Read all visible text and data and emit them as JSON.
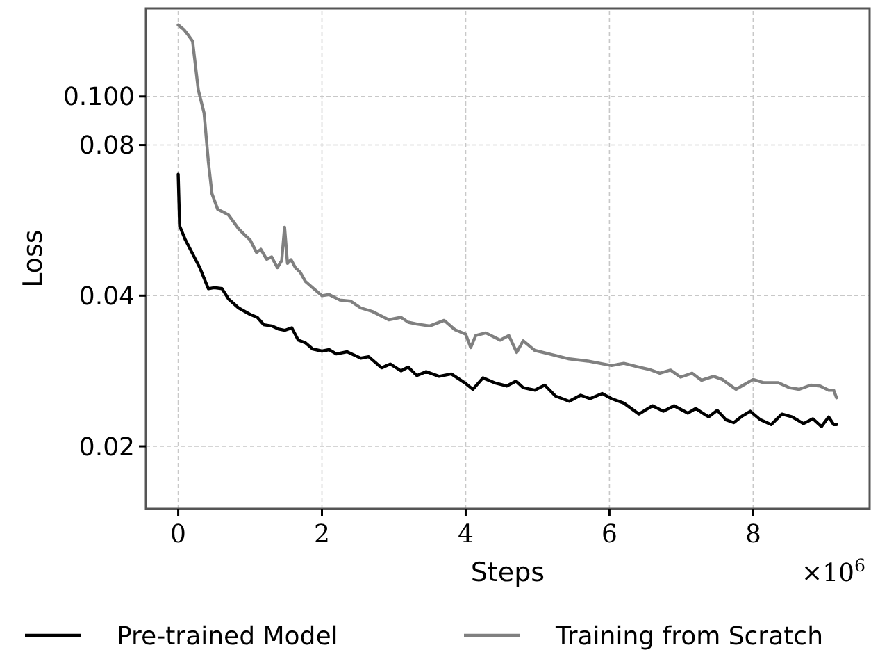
{
  "chart_data": {
    "type": "line",
    "xlabel": "Steps",
    "ylabel": "Loss",
    "log": "y",
    "grid": true,
    "legend": "bottom",
    "line_style": "solid",
    "marker": "none",
    "xlim": [
      -0.45,
      9.62
    ],
    "xticks": [
      0,
      2,
      4,
      6,
      8
    ],
    "ylim": [
      0.015,
      0.15
    ],
    "yticks": [
      {
        "value": 0.1,
        "label": "0.100"
      },
      0.08,
      0.04,
      0.02
    ],
    "annotations": [
      "×10$^{6}$"
    ],
    "series": [
      {
        "name": "Pre-trained Model",
        "color": "#000000",
        "x": [
          0,
          0.02,
          0.1,
          0.2,
          0.3,
          0.42,
          0.5,
          0.61,
          0.7,
          0.84,
          1.0,
          1.1,
          1.19,
          1.3,
          1.4,
          1.48,
          1.58,
          1.67,
          1.77,
          1.87,
          2.0,
          2.1,
          2.2,
          2.35,
          2.54,
          2.65,
          2.83,
          2.95,
          3.1,
          3.2,
          3.32,
          3.45,
          3.63,
          3.8,
          4.0,
          4.1,
          4.24,
          4.4,
          4.57,
          4.7,
          4.8,
          4.96,
          5.1,
          5.25,
          5.44,
          5.6,
          5.73,
          5.9,
          6.03,
          6.2,
          6.41,
          6.6,
          6.75,
          6.9,
          7.09,
          7.2,
          7.38,
          7.5,
          7.62,
          7.73,
          7.85,
          7.96,
          8.1,
          8.25,
          8.4,
          8.54,
          8.7,
          8.83,
          8.95,
          9.05,
          9.12,
          9.16
        ],
        "values": [
          0.0699,
          0.0551,
          0.0517,
          0.0485,
          0.0455,
          0.0413,
          0.0415,
          0.0413,
          0.0394,
          0.0378,
          0.0367,
          0.0362,
          0.035,
          0.0348,
          0.0343,
          0.0341,
          0.0345,
          0.0326,
          0.0322,
          0.0313,
          0.031,
          0.0312,
          0.0306,
          0.0309,
          0.03,
          0.0302,
          0.0287,
          0.0292,
          0.0283,
          0.0288,
          0.0277,
          0.0282,
          0.0276,
          0.0279,
          0.0267,
          0.026,
          0.0274,
          0.0268,
          0.0264,
          0.027,
          0.0262,
          0.0259,
          0.0265,
          0.0252,
          0.0246,
          0.0253,
          0.0249,
          0.0255,
          0.0249,
          0.0244,
          0.0232,
          0.0241,
          0.0235,
          0.0241,
          0.0233,
          0.0238,
          0.0229,
          0.0236,
          0.0226,
          0.0223,
          0.023,
          0.0235,
          0.0226,
          0.0221,
          0.0232,
          0.0229,
          0.0222,
          0.0227,
          0.0219,
          0.0229,
          0.0221,
          0.0221
        ]
      },
      {
        "name": "Training from Scratch",
        "color": "#808080",
        "x": [
          0,
          0.08,
          0.15,
          0.2,
          0.28,
          0.36,
          0.42,
          0.47,
          0.55,
          0.62,
          0.7,
          0.84,
          0.92,
          1.0,
          1.09,
          1.15,
          1.23,
          1.3,
          1.38,
          1.44,
          1.48,
          1.52,
          1.57,
          1.63,
          1.7,
          1.77,
          1.87,
          2.0,
          2.1,
          2.25,
          2.4,
          2.54,
          2.7,
          2.93,
          3.1,
          3.2,
          3.32,
          3.5,
          3.7,
          3.85,
          4.0,
          4.07,
          4.14,
          4.28,
          4.48,
          4.6,
          4.71,
          4.8,
          4.96,
          5.2,
          5.44,
          5.7,
          6.03,
          6.2,
          6.41,
          6.55,
          6.7,
          6.85,
          6.99,
          7.15,
          7.28,
          7.45,
          7.57,
          7.76,
          8.0,
          8.15,
          8.35,
          8.5,
          8.64,
          8.8,
          8.93,
          9.05,
          9.12,
          9.16
        ],
        "values": [
          0.139,
          0.136,
          0.132,
          0.129,
          0.103,
          0.0927,
          0.074,
          0.0639,
          0.0595,
          0.0588,
          0.058,
          0.0544,
          0.053,
          0.0517,
          0.0488,
          0.0495,
          0.0473,
          0.0478,
          0.0455,
          0.047,
          0.0548,
          0.0464,
          0.0472,
          0.0455,
          0.0445,
          0.0427,
          0.0415,
          0.04,
          0.0402,
          0.0392,
          0.039,
          0.0378,
          0.0372,
          0.0358,
          0.0362,
          0.0354,
          0.0351,
          0.0348,
          0.0357,
          0.0342,
          0.0335,
          0.0315,
          0.0333,
          0.0337,
          0.0326,
          0.0333,
          0.0308,
          0.0325,
          0.0311,
          0.0305,
          0.0299,
          0.0296,
          0.029,
          0.0293,
          0.0288,
          0.0285,
          0.028,
          0.0284,
          0.0275,
          0.028,
          0.0271,
          0.0276,
          0.0272,
          0.026,
          0.0272,
          0.0268,
          0.0268,
          0.0262,
          0.026,
          0.0265,
          0.0264,
          0.0259,
          0.0259,
          0.025
        ]
      }
    ]
  }
}
